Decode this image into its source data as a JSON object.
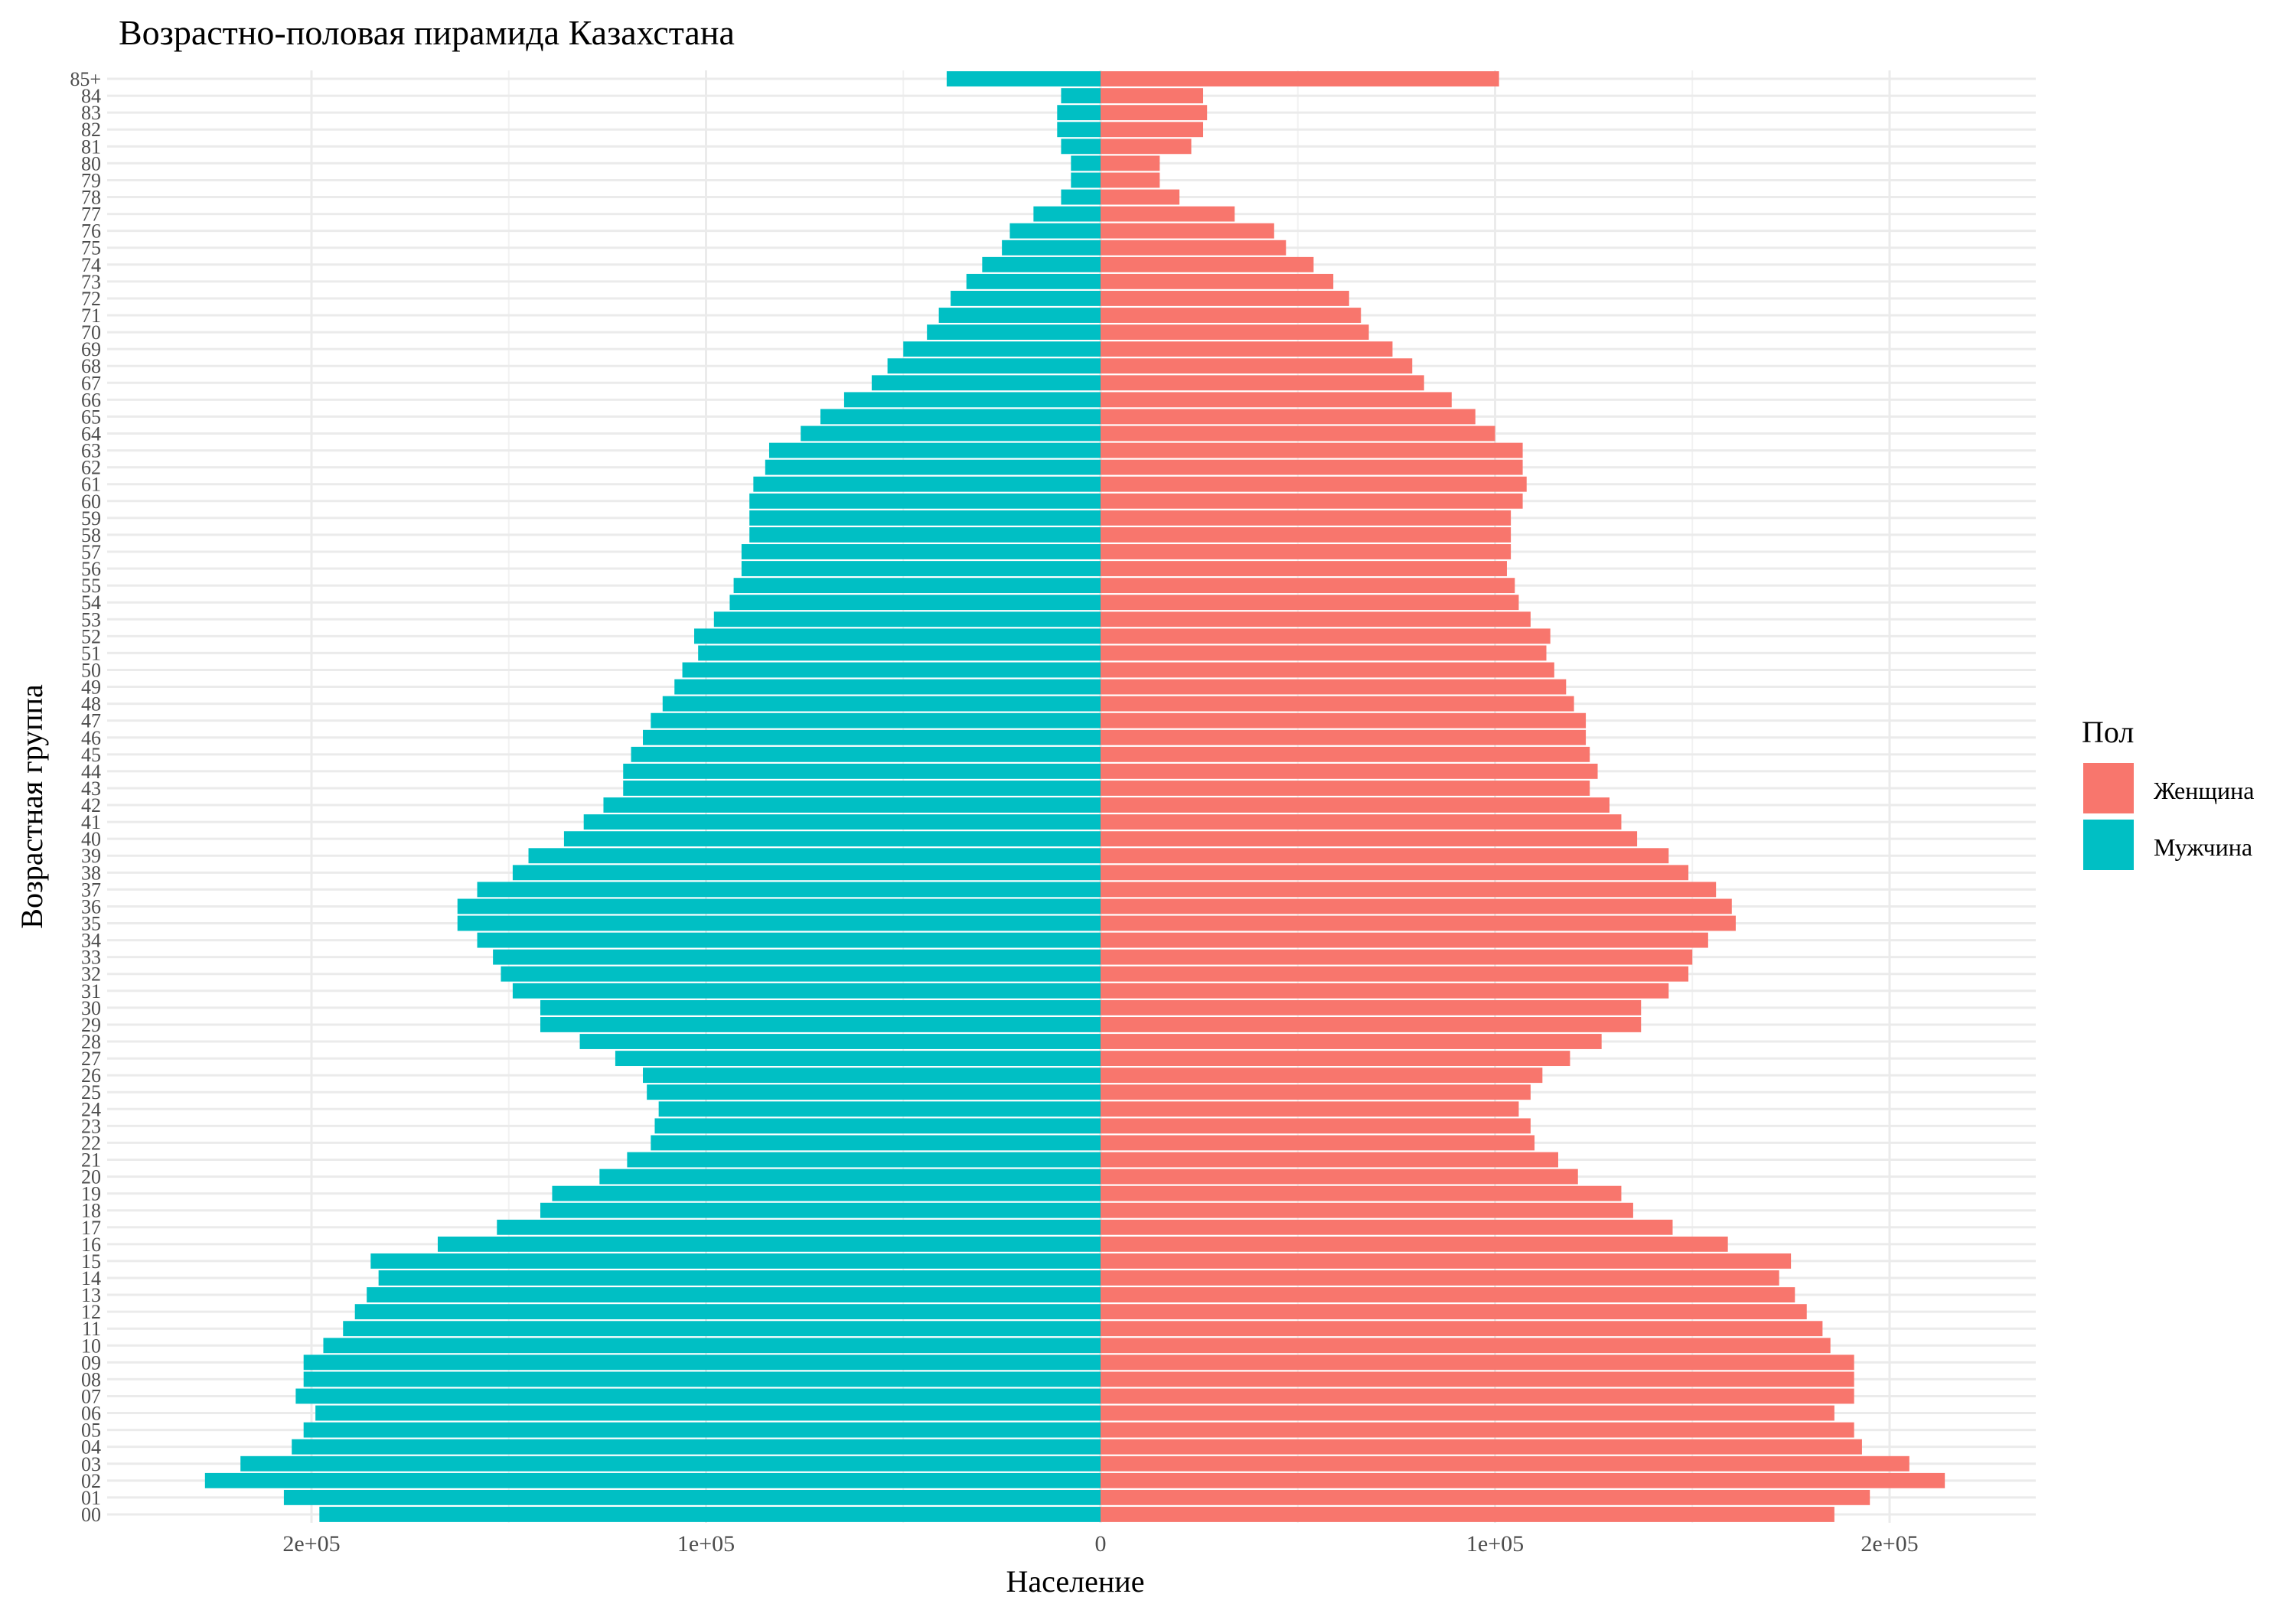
{
  "chart_data": {
    "type": "bar",
    "orientation": "horizontal",
    "title": "Возрастно-половая пирамида Казахстана",
    "xlabel": "Население",
    "ylabel": "Возрастная группа",
    "legend": {
      "title": "Пол",
      "position": "right",
      "entries": [
        {
          "label": "Женщина",
          "color": "#F8766D"
        },
        {
          "label": "Мужчина",
          "color": "#00BFC4"
        }
      ]
    },
    "xlim": [
      -238000,
      236000
    ],
    "x_ticks": [
      {
        "value": -200000,
        "label": "2e+05"
      },
      {
        "value": -100000,
        "label": "1e+05"
      },
      {
        "value": 0,
        "label": "0"
      },
      {
        "value": 100000,
        "label": "1e+05"
      },
      {
        "value": 200000,
        "label": "2e+05"
      }
    ],
    "grid": true,
    "categories": [
      "00",
      "01",
      "02",
      "03",
      "04",
      "05",
      "06",
      "07",
      "08",
      "09",
      "10",
      "11",
      "12",
      "13",
      "14",
      "15",
      "16",
      "17",
      "18",
      "19",
      "20",
      "21",
      "22",
      "23",
      "24",
      "25",
      "26",
      "27",
      "28",
      "29",
      "30",
      "31",
      "32",
      "33",
      "34",
      "35",
      "36",
      "37",
      "38",
      "39",
      "40",
      "41",
      "42",
      "43",
      "44",
      "45",
      "46",
      "47",
      "48",
      "49",
      "50",
      "51",
      "52",
      "53",
      "54",
      "55",
      "56",
      "57",
      "58",
      "59",
      "60",
      "61",
      "62",
      "63",
      "64",
      "65",
      "66",
      "67",
      "68",
      "69",
      "70",
      "71",
      "72",
      "73",
      "74",
      "75",
      "76",
      "77",
      "78",
      "79",
      "80",
      "81",
      "82",
      "83",
      "84",
      "85+"
    ],
    "series": [
      {
        "name": "Женщина",
        "color": "#F8766D",
        "values": [
          186000,
          195000,
          214000,
          205000,
          193000,
          191000,
          186000,
          191000,
          191000,
          191000,
          185000,
          183000,
          179000,
          176000,
          172000,
          175000,
          159000,
          145000,
          135000,
          132000,
          121000,
          116000,
          110000,
          109000,
          106000,
          109000,
          112000,
          119000,
          127000,
          137000,
          137000,
          144000,
          149000,
          150000,
          154000,
          161000,
          160000,
          156000,
          149000,
          144000,
          136000,
          132000,
          129000,
          124000,
          126000,
          124000,
          123000,
          123000,
          120000,
          118000,
          115000,
          113000,
          114000,
          109000,
          106000,
          105000,
          103000,
          104000,
          104000,
          104000,
          107000,
          108000,
          107000,
          107000,
          100000,
          95000,
          89000,
          82000,
          79000,
          74000,
          68000,
          66000,
          63000,
          59000,
          54000,
          47000,
          44000,
          34000,
          20000,
          15000,
          15000,
          23000,
          26000,
          27000,
          26000,
          101000
        ]
      },
      {
        "name": "Мужчина",
        "color": "#00BFC4",
        "values": [
          198000,
          207000,
          227000,
          218000,
          205000,
          202000,
          199000,
          204000,
          202000,
          202000,
          197000,
          192000,
          189000,
          186000,
          183000,
          185000,
          168000,
          153000,
          142000,
          139000,
          127000,
          120000,
          114000,
          113000,
          112000,
          115000,
          116000,
          123000,
          132000,
          142000,
          142000,
          149000,
          152000,
          154000,
          158000,
          163000,
          163000,
          158000,
          149000,
          145000,
          136000,
          131000,
          126000,
          121000,
          121000,
          119000,
          116000,
          114000,
          111000,
          108000,
          106000,
          102000,
          103000,
          98000,
          94000,
          93000,
          91000,
          91000,
          89000,
          89000,
          89000,
          88000,
          85000,
          84000,
          76000,
          71000,
          65000,
          58000,
          54000,
          50000,
          44000,
          41000,
          38000,
          34000,
          30000,
          25000,
          23000,
          17000,
          10000,
          7500,
          7500,
          10000,
          11000,
          11000,
          10000,
          39000
        ]
      }
    ]
  }
}
